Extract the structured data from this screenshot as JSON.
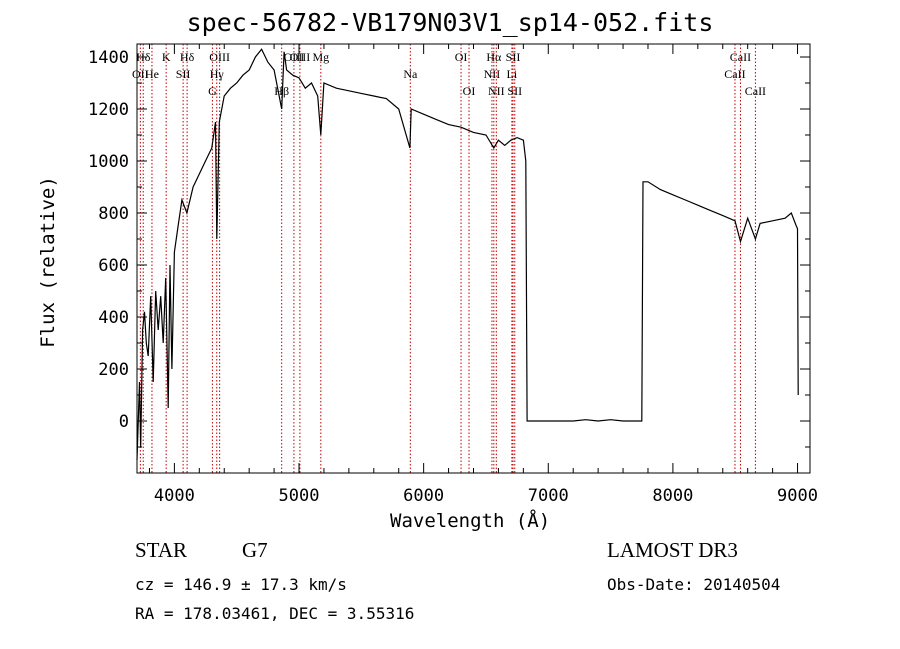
{
  "chart_data": {
    "type": "line",
    "title": "spec-56782-VB179N03V1_sp14-052.fits",
    "xlabel": "Wavelength (Å)",
    "ylabel": "Flux (relative)",
    "xlim": [
      3700,
      9100
    ],
    "ylim": [
      -200,
      1450
    ],
    "xticks": [
      4000,
      5000,
      6000,
      7000,
      8000,
      9000
    ],
    "yticks": [
      0,
      200,
      400,
      600,
      800,
      1000,
      1200,
      1400
    ],
    "line_color": "#000000",
    "marker_color": "#c00000",
    "spectrum": {
      "x": [
        3700,
        3720,
        3730,
        3745,
        3760,
        3775,
        3790,
        3810,
        3830,
        3850,
        3870,
        3890,
        3910,
        3930,
        3950,
        3965,
        3980,
        4000,
        4030,
        4060,
        4100,
        4150,
        4200,
        4250,
        4300,
        4330,
        4340,
        4360,
        4400,
        4450,
        4500,
        4550,
        4600,
        4650,
        4700,
        4750,
        4800,
        4861,
        4880,
        4900,
        4950,
        5000,
        5050,
        5100,
        5150,
        5175,
        5200,
        5300,
        5400,
        5500,
        5600,
        5700,
        5800,
        5890,
        5900,
        6000,
        6100,
        6200,
        6300,
        6400,
        6500,
        6563,
        6600,
        6650,
        6700,
        6750,
        6800,
        6820,
        6830,
        7000,
        7200,
        7300,
        7400,
        7500,
        7600,
        7700,
        7740,
        7750,
        7760,
        7800,
        7900,
        8000,
        8100,
        8200,
        8300,
        8400,
        8498,
        8542,
        8600,
        8662,
        8700,
        8800,
        8900,
        8950,
        8990,
        9000,
        9005
      ],
      "y": [
        -150,
        150,
        -100,
        350,
        420,
        300,
        250,
        480,
        150,
        500,
        350,
        480,
        300,
        550,
        50,
        600,
        200,
        650,
        750,
        850,
        800,
        900,
        950,
        1000,
        1050,
        1150,
        700,
        1150,
        1250,
        1280,
        1300,
        1330,
        1350,
        1400,
        1430,
        1380,
        1350,
        1200,
        1420,
        1350,
        1330,
        1320,
        1280,
        1300,
        1250,
        1100,
        1300,
        1280,
        1270,
        1260,
        1250,
        1240,
        1200,
        1050,
        1200,
        1180,
        1160,
        1140,
        1130,
        1110,
        1100,
        1050,
        1080,
        1060,
        1080,
        1090,
        1080,
        1000,
        0,
        0,
        0,
        5,
        0,
        5,
        0,
        0,
        0,
        0,
        920,
        920,
        890,
        870,
        850,
        830,
        810,
        790,
        770,
        690,
        780,
        700,
        760,
        770,
        780,
        800,
        750,
        740,
        100
      ]
    },
    "lines": [
      {
        "name": "Hδ",
        "x": 3750,
        "row": 1
      },
      {
        "name": "K",
        "x": 3934,
        "row": 1
      },
      {
        "name": "Hδ",
        "x": 4102,
        "row": 1
      },
      {
        "name": "OII",
        "x": 3727,
        "row": 2
      },
      {
        "name": "He",
        "x": 3820,
        "row": 2
      },
      {
        "name": "SII",
        "x": 4070,
        "row": 2
      },
      {
        "name": "OIII",
        "x": 4363,
        "row": 1
      },
      {
        "name": "Hγ",
        "x": 4340,
        "row": 2
      },
      {
        "name": "G",
        "x": 4305,
        "row": 3
      },
      {
        "name": "OIII",
        "x": 4959,
        "row": 1
      },
      {
        "name": "Hβ",
        "x": 4861,
        "row": 3
      },
      {
        "name": "OIII",
        "x": 5007,
        "row": 1
      },
      {
        "name": "Mg",
        "x": 5175,
        "row": 1
      },
      {
        "name": "Na",
        "x": 5893,
        "row": 2
      },
      {
        "name": "OI",
        "x": 6300,
        "row": 1
      },
      {
        "name": "OI",
        "x": 6364,
        "row": 3
      },
      {
        "name": "Hα",
        "x": 6563,
        "row": 1
      },
      {
        "name": "NII",
        "x": 6548,
        "row": 2
      },
      {
        "name": "NII",
        "x": 6583,
        "row": 3
      },
      {
        "name": "SII",
        "x": 6717,
        "row": 1
      },
      {
        "name": "Li",
        "x": 6708,
        "row": 2
      },
      {
        "name": "SII",
        "x": 6731,
        "row": 3
      },
      {
        "name": "CaII",
        "x": 8498,
        "row": 2
      },
      {
        "name": "CaII",
        "x": 8542,
        "row": 1
      },
      {
        "name": "CaII",
        "x": 8662,
        "row": 3
      }
    ]
  },
  "info": {
    "class": "STAR",
    "subclass": "G7",
    "survey": "LAMOST DR3",
    "cz": "cz = 146.9 ± 17.3 km/s",
    "obs_date": "Obs-Date: 20140504",
    "coords": "RA = 178.03461, DEC =   3.55316"
  }
}
